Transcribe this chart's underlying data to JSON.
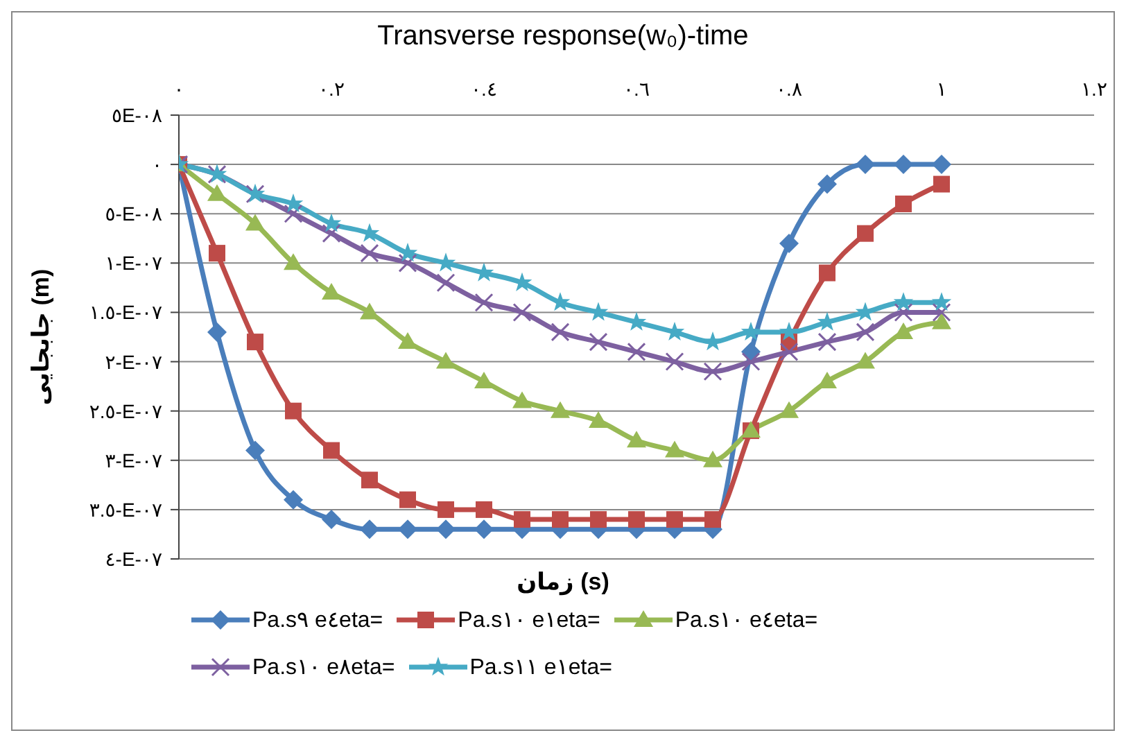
{
  "chart_data": {
    "type": "line",
    "title": "Transverse response(w₀)-time",
    "xlabel": "زمان (s)",
    "ylabel": "جابجایی (m)",
    "x": [
      0,
      0.05,
      0.1,
      0.15,
      0.2,
      0.25,
      0.3,
      0.35,
      0.4,
      0.45,
      0.5,
      0.55,
      0.6,
      0.65,
      0.7,
      0.75,
      0.8,
      0.85,
      0.9,
      0.95,
      1.0
    ],
    "series": [
      {
        "name": "Pa.s٩ e٤eta=",
        "color": "#4a7ebb",
        "marker": "diamond",
        "values": [
          0,
          -1.7e-07,
          -2.9e-07,
          -3.4e-07,
          -3.6e-07,
          -3.7e-07,
          -3.7e-07,
          -3.7e-07,
          -3.7e-07,
          -3.7e-07,
          -3.7e-07,
          -3.7e-07,
          -3.7e-07,
          -3.7e-07,
          -3.7e-07,
          -1.9e-07,
          -8e-08,
          -2e-08,
          0,
          0,
          0
        ]
      },
      {
        "name": "Pa.s١٠ e١eta=",
        "color": "#be4b48",
        "marker": "square",
        "values": [
          0,
          -9e-08,
          -1.8e-07,
          -2.5e-07,
          -2.9e-07,
          -3.2e-07,
          -3.4e-07,
          -3.5e-07,
          -3.5e-07,
          -3.6e-07,
          -3.6e-07,
          -3.6e-07,
          -3.6e-07,
          -3.6e-07,
          -3.6e-07,
          -2.7e-07,
          -1.8e-07,
          -1.1e-07,
          -7e-08,
          -4e-08,
          -2e-08
        ]
      },
      {
        "name": "Pa.s١٠ e٤eta=",
        "color": "#98b954",
        "marker": "triangle",
        "values": [
          0,
          -3e-08,
          -6e-08,
          -1e-07,
          -1.3e-07,
          -1.5e-07,
          -1.8e-07,
          -2e-07,
          -2.2e-07,
          -2.4e-07,
          -2.5e-07,
          -2.6e-07,
          -2.8e-07,
          -2.9e-07,
          -3e-07,
          -2.7e-07,
          -2.5e-07,
          -2.2e-07,
          -2e-07,
          -1.7e-07,
          -1.6e-07
        ]
      },
      {
        "name": "Pa.s١٠ e٨eta=",
        "color": "#7d60a0",
        "marker": "cross",
        "values": [
          0,
          -1e-08,
          -3e-08,
          -5e-08,
          -7e-08,
          -9e-08,
          -1e-07,
          -1.2e-07,
          -1.4e-07,
          -1.5e-07,
          -1.7e-07,
          -1.8e-07,
          -1.9e-07,
          -2e-07,
          -2.1e-07,
          -2e-07,
          -1.9e-07,
          -1.8e-07,
          -1.7e-07,
          -1.5e-07,
          -1.5e-07
        ]
      },
      {
        "name": "Pa.s١١ e١eta=",
        "color": "#46aac5",
        "marker": "star",
        "values": [
          0,
          -1e-08,
          -3e-08,
          -4e-08,
          -6e-08,
          -7e-08,
          -9e-08,
          -1e-07,
          -1.1e-07,
          -1.2e-07,
          -1.4e-07,
          -1.5e-07,
          -1.6e-07,
          -1.7e-07,
          -1.8e-07,
          -1.7e-07,
          -1.7e-07,
          -1.6e-07,
          -1.5e-07,
          -1.4e-07,
          -1.4e-07
        ]
      }
    ],
    "xlim": [
      0,
      1.2
    ],
    "xticks": [
      {
        "value": 0,
        "label": "٠"
      },
      {
        "value": 0.2,
        "label": "٠.٢"
      },
      {
        "value": 0.4,
        "label": "٠.٤"
      },
      {
        "value": 0.6,
        "label": "٠.٦"
      },
      {
        "value": 0.8,
        "label": "٠.٨"
      },
      {
        "value": 1,
        "label": "١"
      },
      {
        "value": 1.2,
        "label": "١.٢"
      }
    ],
    "ylim": [
      -4e-07,
      5e-08
    ],
    "yticks": [
      {
        "value": 5e-08,
        "label": "٥E-٠٨"
      },
      {
        "value": 0,
        "label": "٠"
      },
      {
        "value": -5e-08,
        "label": "٥-E-٠٨"
      },
      {
        "value": -1e-07,
        "label": "١-E-٠٧"
      },
      {
        "value": -1.5e-07,
        "label": "١.٥-E-٠٧"
      },
      {
        "value": -2e-07,
        "label": "٢-E-٠٧"
      },
      {
        "value": -2.5e-07,
        "label": "٢.٥-E-٠٧"
      },
      {
        "value": -3e-07,
        "label": "٣-E-٠٧"
      },
      {
        "value": -3.5e-07,
        "label": "٣.٥-E-٠٧"
      },
      {
        "value": -4e-07,
        "label": "٤-E-٠٧"
      }
    ],
    "grid": "y",
    "legend": "bottom",
    "line_style": "solid"
  }
}
